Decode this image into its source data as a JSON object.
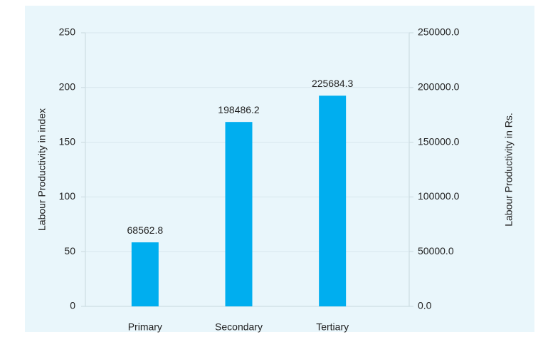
{
  "chart_data": {
    "type": "bar",
    "categories": [
      "Primary",
      "Secondary",
      "Tertiary"
    ],
    "values": [
      58.5,
      168.5,
      192.5
    ],
    "rs_values": [
      68562.8,
      198486.2,
      225684.3
    ],
    "color": "#00aeef",
    "ylabel": "Labour Productivity in index",
    "y2label": "Labour Productivity in Rs.",
    "ylim": [
      0,
      250
    ],
    "yticks": [
      0,
      50,
      100,
      150,
      200,
      250
    ],
    "y2lim": [
      0,
      250000
    ],
    "y2ticks": [
      {
        "value": 0,
        "label": "0.0"
      },
      {
        "value": 50000,
        "label": "50000.0"
      },
      {
        "value": 100000,
        "label": "100000.0"
      },
      {
        "value": 150000,
        "label": "150000.0"
      },
      {
        "value": 200000,
        "label": "200000.0"
      },
      {
        "value": 250000,
        "label": "250000.0"
      }
    ],
    "grid": true
  }
}
